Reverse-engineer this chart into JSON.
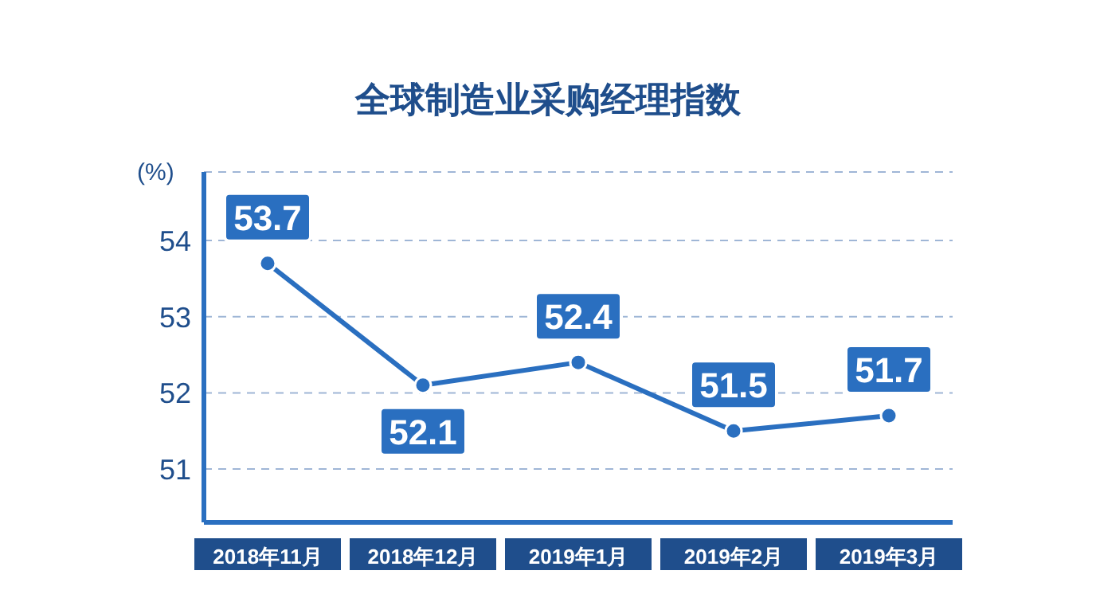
{
  "chart_data": {
    "type": "line",
    "title": "全球制造业采购经理指数",
    "ylabel": "(%)",
    "categories": [
      "2018年11月",
      "2018年12月",
      "2019年1月",
      "2019年2月",
      "2019年3月"
    ],
    "series": [
      {
        "color": "#2a6fc0",
        "values": [
          53.7,
          52.1,
          52.4,
          51.5,
          51.7
        ]
      }
    ],
    "ylim": [
      50.3,
      54.9
    ],
    "yticks": [
      51,
      52,
      53,
      54
    ],
    "grid": "y",
    "marker": "circle",
    "line_style": "solid",
    "data_labels": true,
    "legend": false
  }
}
